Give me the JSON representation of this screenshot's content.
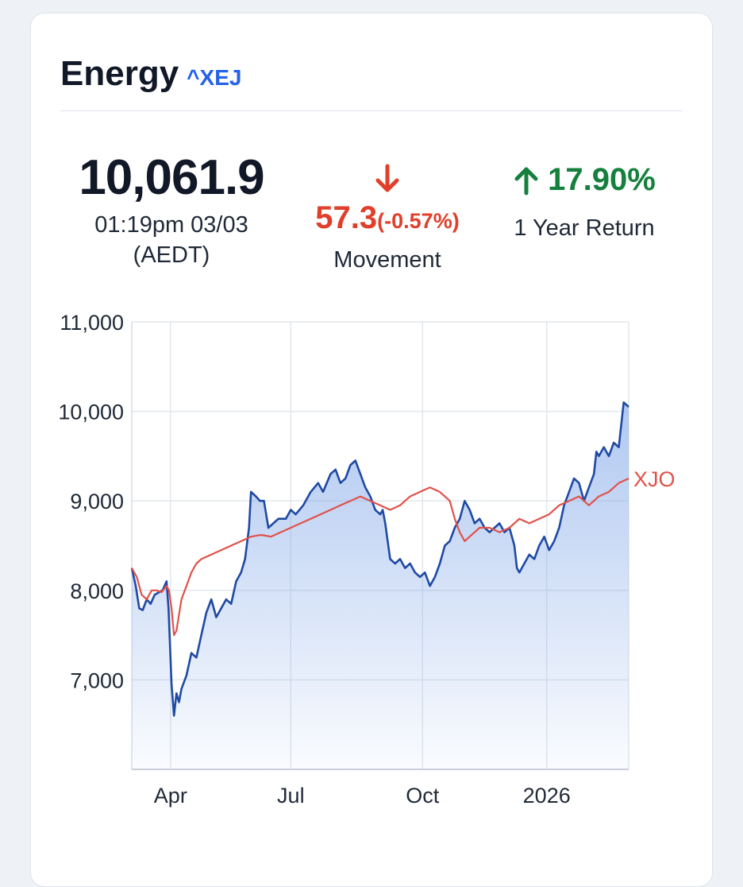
{
  "header": {
    "title": "Energy",
    "ticker": "^XEJ"
  },
  "quote": {
    "price": "10,061.9",
    "time_line1": "01:19pm 03/03",
    "time_line2": "(AEDT)",
    "movement_value": "57.3",
    "movement_pct": "(-0.57%)",
    "movement_label": "Movement",
    "movement_direction": "down",
    "return_value": "17.90%",
    "return_label": "1 Year Return",
    "return_direction": "up"
  },
  "icons": {
    "movement": "arrow-down-icon",
    "return": "arrow-up-icon"
  },
  "colors": {
    "accent": "#2563eb",
    "down": "#e0402b",
    "up": "#15803d",
    "series_main": "#1f4aa3",
    "series_compare": "#e0524a",
    "area_fill": "#7fa6e8"
  },
  "chart_data": {
    "type": "line",
    "y_ticks": [
      "11,000",
      "10,000",
      "9,000",
      "8,000",
      "7,000"
    ],
    "y_tick_values": [
      11000,
      10000,
      9000,
      8000,
      7000
    ],
    "x_ticks": [
      "Apr",
      "Jul",
      "Oct",
      "2026"
    ],
    "x_tick_positions": [
      0.078,
      0.32,
      0.585,
      0.835
    ],
    "ylim": [
      6000,
      11000
    ],
    "grid": true,
    "series": [
      {
        "ticker": "^XEJ",
        "area": true,
        "points": [
          [
            0,
            8250
          ],
          [
            0.008,
            8050
          ],
          [
            0.015,
            7800
          ],
          [
            0.022,
            7780
          ],
          [
            0.03,
            7900
          ],
          [
            0.038,
            7850
          ],
          [
            0.046,
            7950
          ],
          [
            0.055,
            7980
          ],
          [
            0.062,
            8000
          ],
          [
            0.07,
            8100
          ],
          [
            0.074,
            7800
          ],
          [
            0.08,
            6950
          ],
          [
            0.085,
            6600
          ],
          [
            0.09,
            6850
          ],
          [
            0.095,
            6750
          ],
          [
            0.1,
            6900
          ],
          [
            0.11,
            7050
          ],
          [
            0.12,
            7300
          ],
          [
            0.13,
            7250
          ],
          [
            0.14,
            7500
          ],
          [
            0.15,
            7750
          ],
          [
            0.16,
            7900
          ],
          [
            0.17,
            7700
          ],
          [
            0.18,
            7800
          ],
          [
            0.19,
            7900
          ],
          [
            0.2,
            7850
          ],
          [
            0.21,
            8100
          ],
          [
            0.22,
            8200
          ],
          [
            0.228,
            8350
          ],
          [
            0.236,
            8700
          ],
          [
            0.24,
            9100
          ],
          [
            0.25,
            9050
          ],
          [
            0.258,
            9000
          ],
          [
            0.266,
            9000
          ],
          [
            0.275,
            8700
          ],
          [
            0.285,
            8750
          ],
          [
            0.295,
            8800
          ],
          [
            0.31,
            8800
          ],
          [
            0.32,
            8900
          ],
          [
            0.33,
            8850
          ],
          [
            0.345,
            8950
          ],
          [
            0.36,
            9100
          ],
          [
            0.375,
            9200
          ],
          [
            0.385,
            9100
          ],
          [
            0.4,
            9300
          ],
          [
            0.41,
            9350
          ],
          [
            0.42,
            9200
          ],
          [
            0.43,
            9250
          ],
          [
            0.44,
            9400
          ],
          [
            0.45,
            9450
          ],
          [
            0.46,
            9300
          ],
          [
            0.47,
            9150
          ],
          [
            0.48,
            9050
          ],
          [
            0.49,
            8900
          ],
          [
            0.5,
            8850
          ],
          [
            0.505,
            8900
          ],
          [
            0.51,
            8750
          ],
          [
            0.515,
            8550
          ],
          [
            0.52,
            8350
          ],
          [
            0.53,
            8300
          ],
          [
            0.54,
            8350
          ],
          [
            0.55,
            8250
          ],
          [
            0.56,
            8300
          ],
          [
            0.57,
            8200
          ],
          [
            0.58,
            8150
          ],
          [
            0.59,
            8200
          ],
          [
            0.6,
            8050
          ],
          [
            0.61,
            8150
          ],
          [
            0.62,
            8300
          ],
          [
            0.63,
            8500
          ],
          [
            0.64,
            8550
          ],
          [
            0.65,
            8700
          ],
          [
            0.66,
            8800
          ],
          [
            0.67,
            9000
          ],
          [
            0.68,
            8900
          ],
          [
            0.69,
            8750
          ],
          [
            0.7,
            8800
          ],
          [
            0.71,
            8700
          ],
          [
            0.72,
            8650
          ],
          [
            0.73,
            8700
          ],
          [
            0.74,
            8750
          ],
          [
            0.75,
            8650
          ],
          [
            0.76,
            8700
          ],
          [
            0.77,
            8500
          ],
          [
            0.775,
            8250
          ],
          [
            0.78,
            8200
          ],
          [
            0.79,
            8300
          ],
          [
            0.8,
            8400
          ],
          [
            0.81,
            8350
          ],
          [
            0.82,
            8500
          ],
          [
            0.83,
            8600
          ],
          [
            0.84,
            8450
          ],
          [
            0.85,
            8550
          ],
          [
            0.86,
            8700
          ],
          [
            0.87,
            8950
          ],
          [
            0.88,
            9100
          ],
          [
            0.89,
            9250
          ],
          [
            0.9,
            9200
          ],
          [
            0.91,
            9000
          ],
          [
            0.92,
            9150
          ],
          [
            0.93,
            9300
          ],
          [
            0.935,
            9550
          ],
          [
            0.94,
            9500
          ],
          [
            0.95,
            9600
          ],
          [
            0.96,
            9500
          ],
          [
            0.97,
            9650
          ],
          [
            0.98,
            9600
          ],
          [
            0.99,
            10100
          ],
          [
            1.0,
            10050
          ]
        ]
      },
      {
        "ticker": "XJO",
        "name": "XJO",
        "area": false,
        "points": [
          [
            0,
            8250
          ],
          [
            0.01,
            8150
          ],
          [
            0.02,
            7950
          ],
          [
            0.03,
            7900
          ],
          [
            0.04,
            8000
          ],
          [
            0.05,
            8000
          ],
          [
            0.06,
            7980
          ],
          [
            0.07,
            8050
          ],
          [
            0.075,
            8000
          ],
          [
            0.08,
            7800
          ],
          [
            0.085,
            7500
          ],
          [
            0.09,
            7550
          ],
          [
            0.1,
            7900
          ],
          [
            0.11,
            8050
          ],
          [
            0.12,
            8200
          ],
          [
            0.13,
            8300
          ],
          [
            0.14,
            8350
          ],
          [
            0.16,
            8400
          ],
          [
            0.18,
            8450
          ],
          [
            0.2,
            8500
          ],
          [
            0.22,
            8550
          ],
          [
            0.24,
            8600
          ],
          [
            0.26,
            8620
          ],
          [
            0.28,
            8600
          ],
          [
            0.3,
            8650
          ],
          [
            0.32,
            8700
          ],
          [
            0.34,
            8750
          ],
          [
            0.36,
            8800
          ],
          [
            0.38,
            8850
          ],
          [
            0.4,
            8900
          ],
          [
            0.42,
            8950
          ],
          [
            0.44,
            9000
          ],
          [
            0.46,
            9050
          ],
          [
            0.48,
            9000
          ],
          [
            0.5,
            8950
          ],
          [
            0.52,
            8900
          ],
          [
            0.54,
            8950
          ],
          [
            0.56,
            9050
          ],
          [
            0.58,
            9100
          ],
          [
            0.6,
            9150
          ],
          [
            0.62,
            9100
          ],
          [
            0.64,
            9000
          ],
          [
            0.65,
            8800
          ],
          [
            0.66,
            8650
          ],
          [
            0.67,
            8550
          ],
          [
            0.68,
            8600
          ],
          [
            0.7,
            8700
          ],
          [
            0.72,
            8700
          ],
          [
            0.74,
            8650
          ],
          [
            0.76,
            8700
          ],
          [
            0.78,
            8800
          ],
          [
            0.8,
            8750
          ],
          [
            0.82,
            8800
          ],
          [
            0.84,
            8850
          ],
          [
            0.86,
            8950
          ],
          [
            0.88,
            9000
          ],
          [
            0.9,
            9050
          ],
          [
            0.92,
            8950
          ],
          [
            0.94,
            9050
          ],
          [
            0.96,
            9100
          ],
          [
            0.98,
            9200
          ],
          [
            1.0,
            9250
          ]
        ]
      }
    ]
  }
}
